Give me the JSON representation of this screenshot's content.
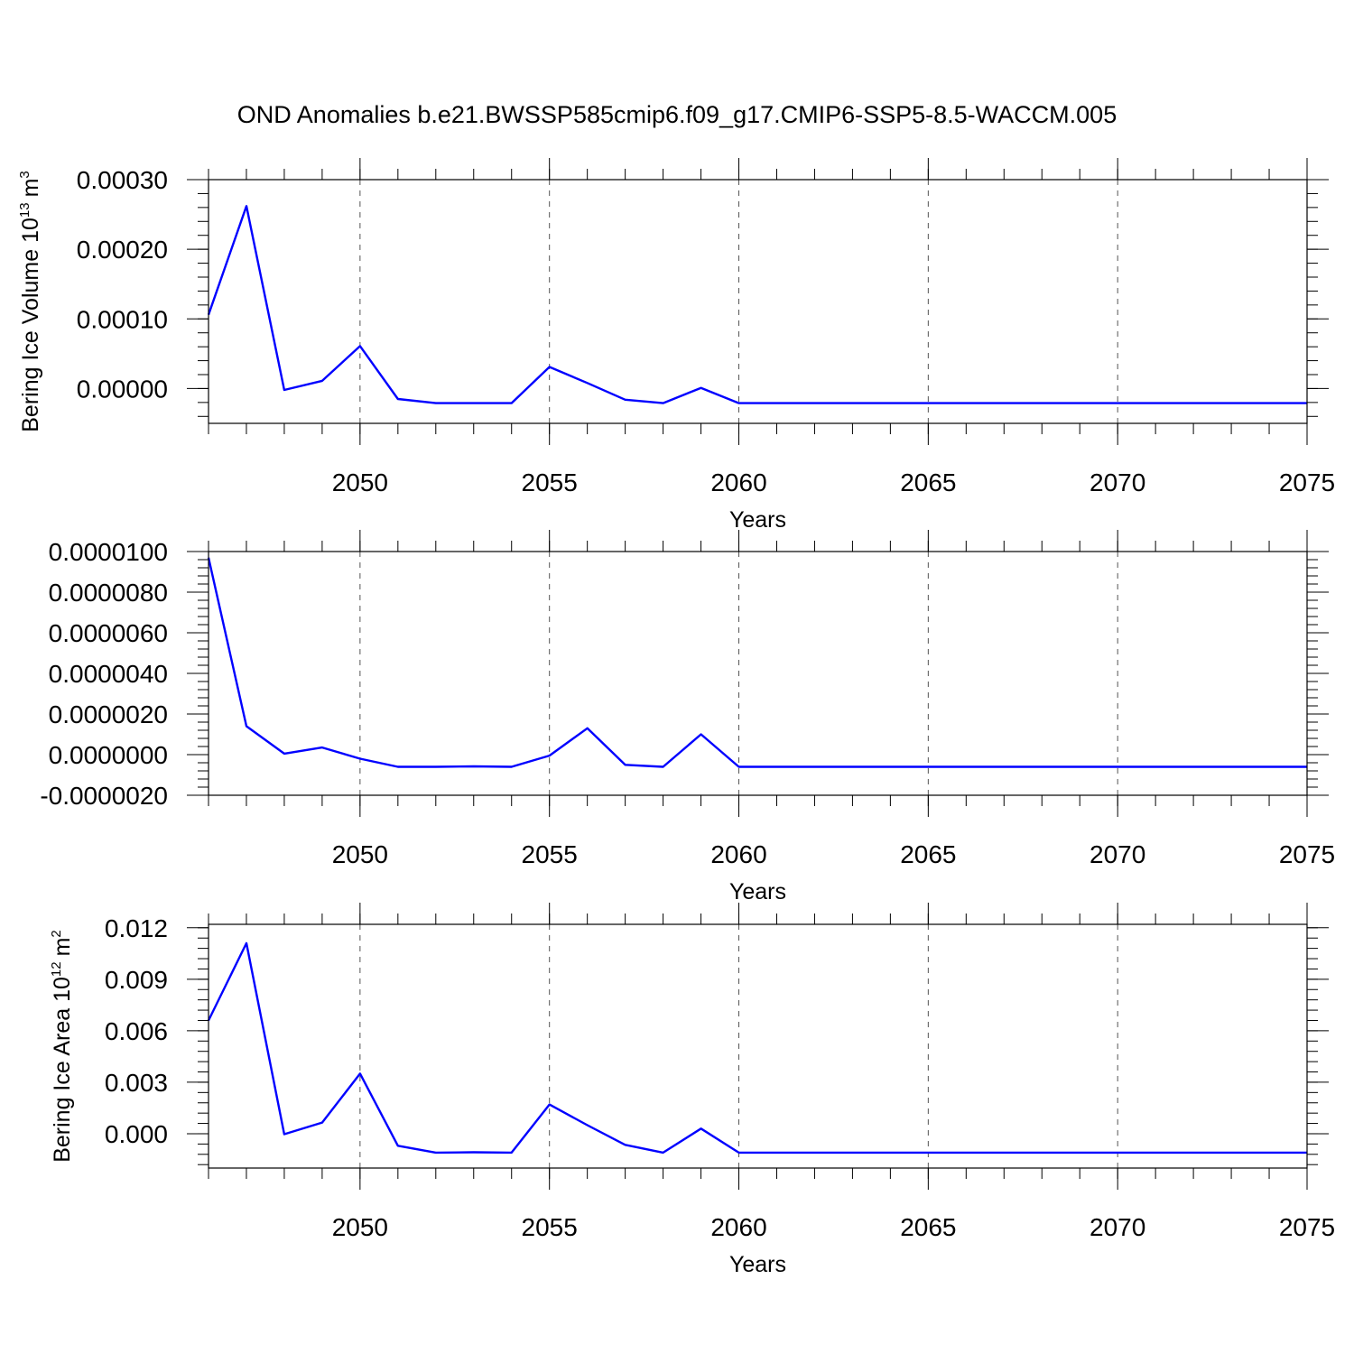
{
  "title": "OND Anomalies b.e21.BWSSP585cmip6.f09_g17.CMIP6-SSP5-8.5-WACCM.005",
  "colors": {
    "line": "#0000ff",
    "frame": "#000000",
    "grid": "#555555"
  },
  "chart_data": [
    {
      "type": "line",
      "xlabel": "Years",
      "ylabel": "Bering Ice Volume 10",
      "ylabel_exponent": "13",
      "ylabel_unit": "m",
      "ylabel_unit_exponent": "3",
      "xlim": [
        2046,
        2075
      ],
      "ylim": [
        -5e-05,
        0.0003
      ],
      "x_ticks": [
        2050,
        2055,
        2060,
        2065,
        2070,
        2075
      ],
      "y_ticks": [
        0.0,
        0.0001,
        0.0002,
        0.0003
      ],
      "y_tick_labels": [
        "0.00000",
        "0.00010",
        "0.00020",
        "0.00030"
      ],
      "grid": "vertical dashed at major x ticks",
      "x": [
        2046,
        2047,
        2048,
        2049,
        2050,
        2051,
        2052,
        2053,
        2054,
        2055,
        2056,
        2057,
        2058,
        2059,
        2060,
        2061,
        2062,
        2063,
        2064,
        2065,
        2066,
        2067,
        2068,
        2069,
        2070,
        2071,
        2072,
        2073,
        2074,
        2075
      ],
      "series": [
        {
          "values": [
            0.000106,
            0.000262,
            -2e-06,
            1.1e-05,
            6.1e-05,
            -1.5e-05,
            -2.1e-05,
            -2.1e-05,
            -2.1e-05,
            3.1e-05,
            8e-06,
            -1.6e-05,
            -2.1e-05,
            1e-06,
            -2.1e-05,
            -2.1e-05,
            -2.1e-05,
            -2.1e-05,
            -2.1e-05,
            -2.1e-05,
            -2.1e-05,
            -2.1e-05,
            -2.1e-05,
            -2.1e-05,
            -2.1e-05,
            -2.1e-05,
            -2.1e-05,
            -2.1e-05,
            -2.1e-05,
            -2.1e-05
          ]
        }
      ]
    },
    {
      "type": "line",
      "xlabel": "Years",
      "ylabel": "",
      "xlim": [
        2046,
        2075
      ],
      "ylim": [
        -2e-06,
        1e-05
      ],
      "x_ticks": [
        2050,
        2055,
        2060,
        2065,
        2070,
        2075
      ],
      "y_ticks": [
        -2e-06,
        0.0,
        2e-06,
        4e-06,
        6e-06,
        8e-06,
        1e-05
      ],
      "y_tick_labels": [
        "-0.0000020",
        "0.0000000",
        "0.0000020",
        "0.0000040",
        "0.0000060",
        "0.0000080",
        "0.0000100"
      ],
      "grid": "vertical dashed at major x ticks",
      "x": [
        2046,
        2047,
        2048,
        2049,
        2050,
        2051,
        2052,
        2053,
        2054,
        2055,
        2056,
        2057,
        2058,
        2059,
        2060,
        2061,
        2062,
        2063,
        2064,
        2065,
        2066,
        2067,
        2068,
        2069,
        2070,
        2071,
        2072,
        2073,
        2074,
        2075
      ],
      "series": [
        {
          "values": [
            9.7e-06,
            1.4e-06,
            5e-08,
            3.5e-07,
            -2e-07,
            -6e-07,
            -6e-07,
            -5.8e-07,
            -6e-07,
            -5e-08,
            1.3e-06,
            -5e-07,
            -6e-07,
            1e-06,
            -6e-07,
            -6e-07,
            -6e-07,
            -6e-07,
            -6e-07,
            -6e-07,
            -6e-07,
            -6e-07,
            -6e-07,
            -6e-07,
            -6e-07,
            -6e-07,
            -6e-07,
            -6e-07,
            -6e-07,
            -6e-07
          ]
        }
      ]
    },
    {
      "type": "line",
      "xlabel": "Years",
      "ylabel": "Bering Ice Area 10",
      "ylabel_exponent": "12",
      "ylabel_unit": "m",
      "ylabel_unit_exponent": "2",
      "xlim": [
        2046,
        2075
      ],
      "ylim": [
        -0.002,
        0.0122
      ],
      "x_ticks": [
        2050,
        2055,
        2060,
        2065,
        2070,
        2075
      ],
      "y_ticks": [
        0.0,
        0.003,
        0.006,
        0.009,
        0.012
      ],
      "y_tick_labels": [
        "0.000",
        "0.003",
        "0.006",
        "0.009",
        "0.012"
      ],
      "grid": "vertical dashed at major x ticks",
      "x": [
        2046,
        2047,
        2048,
        2049,
        2050,
        2051,
        2052,
        2053,
        2054,
        2055,
        2056,
        2057,
        2058,
        2059,
        2060,
        2061,
        2062,
        2063,
        2064,
        2065,
        2066,
        2067,
        2068,
        2069,
        2070,
        2071,
        2072,
        2073,
        2074,
        2075
      ],
      "series": [
        {
          "values": [
            0.0066,
            0.0111,
            -3e-05,
            0.00065,
            0.0035,
            -0.0007,
            -0.0011,
            -0.00108,
            -0.0011,
            0.0017,
            0.0005,
            -0.00065,
            -0.0011,
            0.0003,
            -0.0011,
            -0.0011,
            -0.0011,
            -0.0011,
            -0.0011,
            -0.0011,
            -0.0011,
            -0.0011,
            -0.0011,
            -0.0011,
            -0.0011,
            -0.0011,
            -0.0011,
            -0.0011,
            -0.0011,
            -0.0011
          ]
        }
      ]
    }
  ]
}
